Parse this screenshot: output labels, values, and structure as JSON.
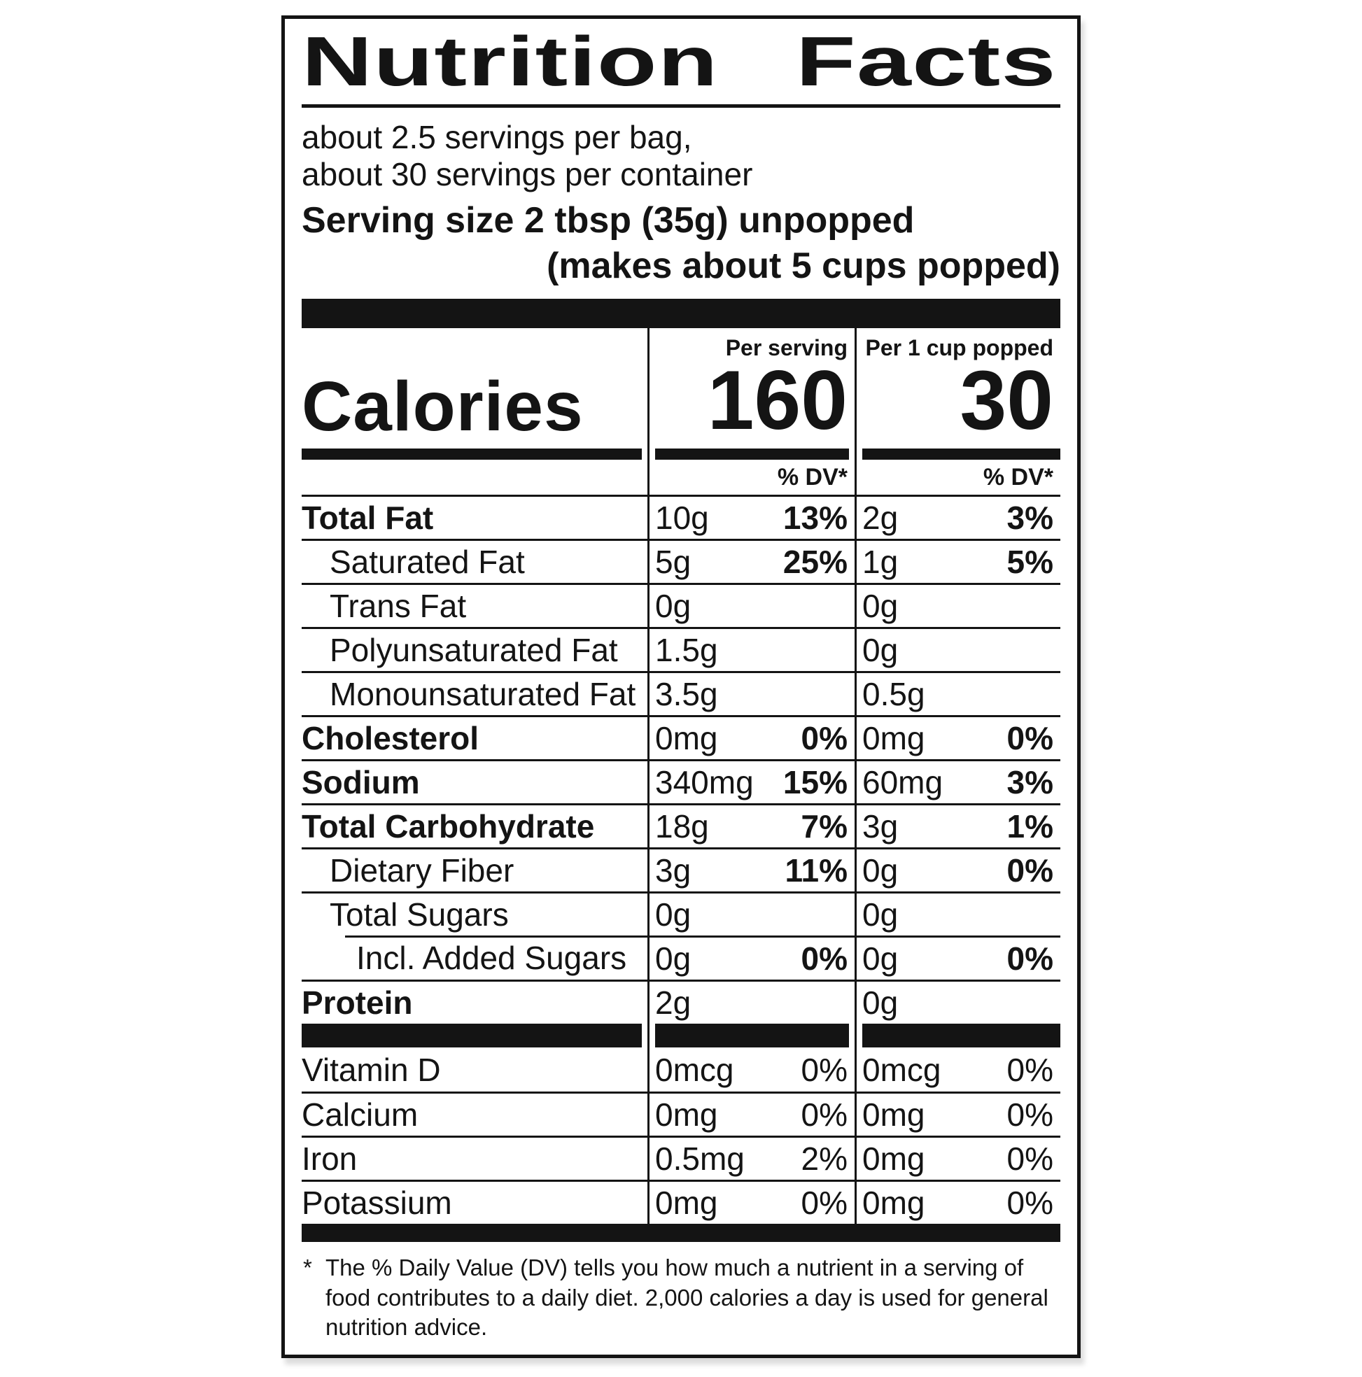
{
  "label": {
    "title": "Nutrition Facts",
    "servings_per_bag": "about 2.5 servings per bag,",
    "servings_per_container": "about 30 servings per container",
    "serving_size": "Serving size 2 tbsp (35g) unpopped",
    "serving_size_note": "(makes about 5 cups popped)",
    "calories_label": "Calories",
    "col_per_serving": {
      "header": "Per serving",
      "calories": "160",
      "dv_header": "% DV*"
    },
    "col_per_cup": {
      "header": "Per 1 cup popped",
      "calories": "30",
      "dv_header": "% DV*"
    },
    "rows": [
      {
        "name": "Total Fat",
        "c1_amount": "10g",
        "c1_dv": "13%",
        "c2_amount": "2g",
        "c2_dv": "3%"
      },
      {
        "name": "Saturated Fat",
        "c1_amount": "5g",
        "c1_dv": "25%",
        "c2_amount": "1g",
        "c2_dv": "5%"
      },
      {
        "name": "Trans Fat",
        "c1_amount": "0g",
        "c1_dv": "",
        "c2_amount": "0g",
        "c2_dv": ""
      },
      {
        "name": "Polyunsaturated Fat",
        "c1_amount": "1.5g",
        "c1_dv": "",
        "c2_amount": "0g",
        "c2_dv": ""
      },
      {
        "name": "Monounsaturated Fat",
        "c1_amount": "3.5g",
        "c1_dv": "",
        "c2_amount": "0.5g",
        "c2_dv": ""
      },
      {
        "name": "Cholesterol",
        "c1_amount": "0mg",
        "c1_dv": "0%",
        "c2_amount": "0mg",
        "c2_dv": "0%"
      },
      {
        "name": "Sodium",
        "c1_amount": "340mg",
        "c1_dv": "15%",
        "c2_amount": "60mg",
        "c2_dv": "3%"
      },
      {
        "name": "Total Carbohydrate",
        "c1_amount": "18g",
        "c1_dv": "7%",
        "c2_amount": "3g",
        "c2_dv": "1%"
      },
      {
        "name": "Dietary Fiber",
        "c1_amount": "3g",
        "c1_dv": "11%",
        "c2_amount": "0g",
        "c2_dv": "0%"
      },
      {
        "name": "Total Sugars",
        "c1_amount": "0g",
        "c1_dv": "",
        "c2_amount": "0g",
        "c2_dv": ""
      },
      {
        "name": "Incl. Added Sugars",
        "c1_amount": "0g",
        "c1_dv": "0%",
        "c2_amount": "0g",
        "c2_dv": "0%"
      },
      {
        "name": "Protein",
        "c1_amount": "2g",
        "c1_dv": "",
        "c2_amount": "0g",
        "c2_dv": ""
      },
      {
        "name": "Vitamin D",
        "c1_amount": "0mcg",
        "c1_dv": "0%",
        "c2_amount": "0mcg",
        "c2_dv": "0%"
      },
      {
        "name": "Calcium",
        "c1_amount": "0mg",
        "c1_dv": "0%",
        "c2_amount": "0mg",
        "c2_dv": "0%"
      },
      {
        "name": "Iron",
        "c1_amount": "0.5mg",
        "c1_dv": "2%",
        "c2_amount": "0mg",
        "c2_dv": "0%"
      },
      {
        "name": "Potassium",
        "c1_amount": "0mg",
        "c1_dv": "0%",
        "c2_amount": "0mg",
        "c2_dv": "0%"
      }
    ],
    "footnote_marker": "*",
    "footnote": "The % Daily Value (DV) tells you how much a nutrient in a serving of food contributes to a daily diet. 2,000 calories a day is used for general nutrition advice.",
    "colors": {
      "ink": "#141414",
      "background": "#ffffff"
    }
  }
}
